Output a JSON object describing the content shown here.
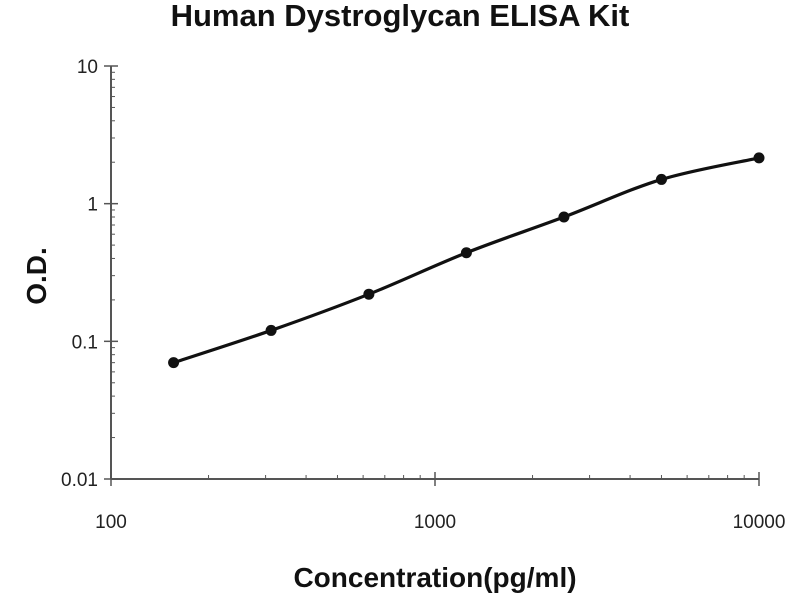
{
  "chart_data": {
    "type": "line",
    "title": "Human Dystroglycan ELISA Kit",
    "xlabel": "Concentration(pg/ml)",
    "ylabel": "O.D.",
    "x_scale": "log",
    "y_scale": "log",
    "xlim": [
      100,
      10000
    ],
    "ylim": [
      0.01,
      10
    ],
    "x_ticks": [
      "100",
      "1000",
      "10000"
    ],
    "y_ticks": [
      "0.01",
      "0.1",
      "1",
      "10"
    ],
    "grid": false,
    "legend": "none",
    "colors": {
      "line": "#111111",
      "marker": "#111111",
      "axis": "#555555",
      "text": "#111111"
    },
    "series": [
      {
        "x": [
          156,
          312,
          625,
          1250,
          2500,
          5000,
          10000
        ],
        "y": [
          0.07,
          0.12,
          0.22,
          0.44,
          0.8,
          1.5,
          2.15
        ]
      }
    ]
  }
}
